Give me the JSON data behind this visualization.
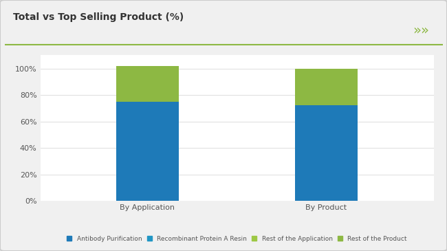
{
  "title": "Total vs Top Selling Product (%)",
  "categories": [
    "By Application",
    "By Product"
  ],
  "series": {
    "Antibody Purification": [
      75,
      72
    ],
    "Recombinant Protein A Resin": [
      0,
      0
    ],
    "Rest of the Application": [
      27,
      0
    ],
    "Rest of the Product": [
      0,
      28
    ]
  },
  "bar_colors": {
    "Antibody Purification": "#1e7ab8",
    "Recombinant Protein A Resin": "#1e7ab8",
    "Rest of the Application": "#8db843",
    "Rest of the Product": "#8db843"
  },
  "legend_dot_colors": {
    "Antibody Purification": "#1e7ab8",
    "Recombinant Protein A Resin": "#2196c4",
    "Rest of the Application": "#9dc844",
    "Rest of the Product": "#8db843"
  },
  "ylim": [
    0,
    110
  ],
  "yticks": [
    0,
    20,
    40,
    60,
    80,
    100
  ],
  "yticklabels": [
    "0%",
    "20%",
    "40%",
    "60%",
    "80%",
    "100%"
  ],
  "background_color": "#f0f0f0",
  "plot_bg_color": "#ffffff",
  "header_bg_color": "#ffffff",
  "title_fontsize": 10,
  "bar_width": 0.35,
  "accent_color": "#8db843",
  "header_line_color": "#8db843"
}
